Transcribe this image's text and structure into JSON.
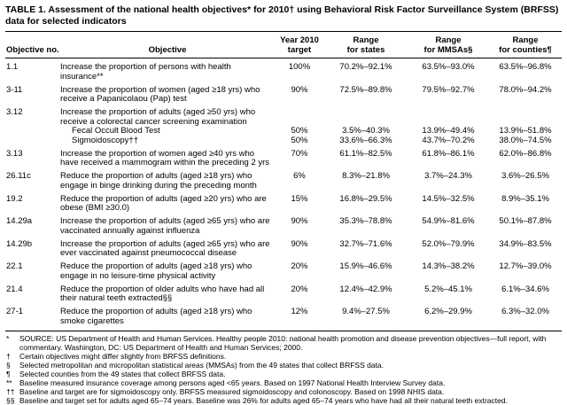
{
  "colors": {
    "text": "#000000",
    "background": "#ffffff",
    "rule": "#000000"
  },
  "table": {
    "title": "TABLE 1. Assessment of the national health objectives* for 2010† using Behavioral Risk Factor Surveillance System (BRFSS) data for selected indicators",
    "columns": [
      {
        "lines": [
          "Objective no."
        ]
      },
      {
        "lines": [
          "Objective"
        ]
      },
      {
        "lines": [
          "Year 2010",
          "target"
        ]
      },
      {
        "lines": [
          "Range",
          "for states"
        ]
      },
      {
        "lines": [
          "Range",
          "for MMSAs§"
        ]
      },
      {
        "lines": [
          "Range",
          "for counties¶"
        ]
      }
    ],
    "rows": [
      {
        "no": "1.1",
        "objective": "Increase the proportion of persons with health insurance**",
        "target": "100%",
        "states": "70.2%–92.1%",
        "mmsas": "63.5%–93.0%",
        "counties": "63.5%–96.8%"
      },
      {
        "no": "3-11",
        "objective": "Increase the proportion of women (aged ≥18 yrs) who receive a Papanicolaou (Pap) test",
        "target": "90%",
        "states": "72.5%–89.8%",
        "mmsas": "79.5%–92.7%",
        "counties": "78.0%–94.2%"
      },
      {
        "no": "3.12",
        "objective": "Increase the proportion of adults (aged ≥50 yrs) who receive a colorectal cancer screening examination",
        "subrows": [
          {
            "label": "Fecal Occult Blood Test",
            "target": "50%",
            "states": "3.5%–40.3%",
            "mmsas": "13.9%–49.4%",
            "counties": "13.9%–51.8%"
          },
          {
            "label": "Sigmoidoscopy††",
            "target": "50%",
            "states": "33.6%–66.3%",
            "mmsas": "43.7%–70.2%",
            "counties": "38.0%–74.5%"
          }
        ]
      },
      {
        "no": "3.13",
        "objective": "Increase the proportion of women aged ≥40 yrs who have received a mammogram within the preceding 2 yrs",
        "target": "70%",
        "states": "61.1%–82.5%",
        "mmsas": "61.8%–86.1%",
        "counties": "62.0%–86.8%"
      },
      {
        "no": "26.11c",
        "objective": "Reduce the proportion of adults (aged ≥18 yrs) who engage in binge drinking during the preceding month",
        "target": "6%",
        "states": "8.3%–21.8%",
        "mmsas": "3.7%–24.3%",
        "counties": "3.6%–26.5%"
      },
      {
        "no": "19.2",
        "objective": "Reduce the proportion of adults (aged ≥20 yrs) who are obese (BMI ≥30.0)",
        "target": "15%",
        "states": "16.8%–29.5%",
        "mmsas": "14.5%–32.5%",
        "counties": "8.9%–35.1%"
      },
      {
        "no": "14.29a",
        "objective": "Increase the proportion of adults (aged ≥65 yrs) who are vaccinated annually against influenza",
        "target": "90%",
        "states": "35.3%–78.8%",
        "mmsas": "54.9%–81.6%",
        "counties": "50.1%–87.8%"
      },
      {
        "no": "14.29b",
        "objective": "Increase the proportion of adults (aged ≥65 yrs) who are ever vaccinated against pneumococcal disease",
        "target": "90%",
        "states": "32.7%–71.6%",
        "mmsas": "52.0%–79.9%",
        "counties": "34.9%–83.5%"
      },
      {
        "no": "22.1",
        "objective": "Reduce the proportion of adults (aged ≥18 yrs) who engage in no leisure-time physical activity",
        "target": "20%",
        "states": "15.9%–46.6%",
        "mmsas": "14.3%–38.2%",
        "counties": "12.7%–39.0%"
      },
      {
        "no": "21.4",
        "objective": "Reduce the proportion of older adults who have had all their natural teeth extracted§§",
        "target": "20%",
        "states": "12.4%–42.9%",
        "mmsas": "5.2%–45.1%",
        "counties": "6.1%–34.6%"
      },
      {
        "no": "27-1",
        "objective": "Reduce the proportion of adults (aged ≥18 yrs) who smoke cigarettes",
        "target": "12%",
        "states": "9.4%–27.5%",
        "mmsas": "6.2%–29.9%",
        "counties": "6.3%–32.0%"
      }
    ],
    "footnotes": [
      {
        "marker": "*",
        "text": "SOURCE: US Department of Health and Human Services. Healthy people 2010: national health promotion and disease prevention objectives—full report, with commentary. Washington, DC: US Department of Health and Human Services; 2000."
      },
      {
        "marker": "†",
        "text": "Certain objectives might differ slightly from BRFSS definitions."
      },
      {
        "marker": "§",
        "text": "Selected metropolitan and micropolitan statistical areas (MMSAs) from the 49 states that collect BRFSS data."
      },
      {
        "marker": "¶",
        "text": "Selected counties from the 49 states that collect BRFSS data."
      },
      {
        "marker": "**",
        "text": "Baseline measured insurance coverage among persons aged <65 years. Based on 1997 National Health Interview Survey data."
      },
      {
        "marker": "††",
        "text": "Baseline and target are for sigmoidoscopy only. BRFSS measured sigmoidoscopy and colonoscopy. Based on 1998 NHIS data."
      },
      {
        "marker": "§§",
        "text": "Baseline and target set for adults aged 65–74 years. Baseline was 26% for adults aged 65–74 years who have had all their natural teeth extracted."
      }
    ]
  }
}
